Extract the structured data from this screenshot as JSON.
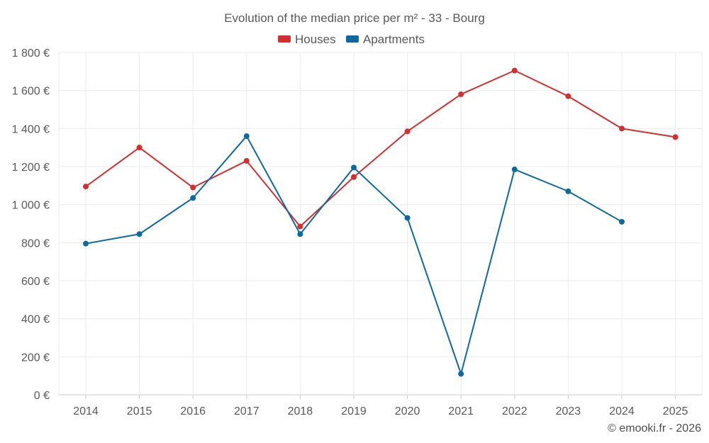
{
  "chart_data": {
    "type": "line",
    "title": "Evolution of the median price per m² - 33 - Bourg",
    "x": [
      "2014",
      "2015",
      "2016",
      "2017",
      "2018",
      "2019",
      "2020",
      "2021",
      "2022",
      "2023",
      "2024",
      "2025"
    ],
    "series": [
      {
        "name": "Houses",
        "color": "#d32f2f",
        "values": [
          1095,
          1300,
          1090,
          1230,
          885,
          1145,
          1385,
          1580,
          1705,
          1570,
          1400,
          1355
        ]
      },
      {
        "name": "Apartments",
        "color": "#0d6aa0",
        "values": [
          795,
          845,
          1035,
          1360,
          845,
          1195,
          930,
          110,
          1185,
          1070,
          910,
          null
        ]
      }
    ],
    "ylim": [
      0,
      1800
    ],
    "yticks": [
      0,
      200,
      400,
      600,
      800,
      1000,
      1200,
      1400,
      1600,
      1800
    ],
    "ytick_labels": [
      "0 €",
      "200 €",
      "400 €",
      "600 €",
      "800 €",
      "1 000 €",
      "1 200 €",
      "1 400 €",
      "1 600 €",
      "1 800 €"
    ],
    "grid": true,
    "legend": "top-center",
    "credit": "© emooki.fr - 2026"
  }
}
